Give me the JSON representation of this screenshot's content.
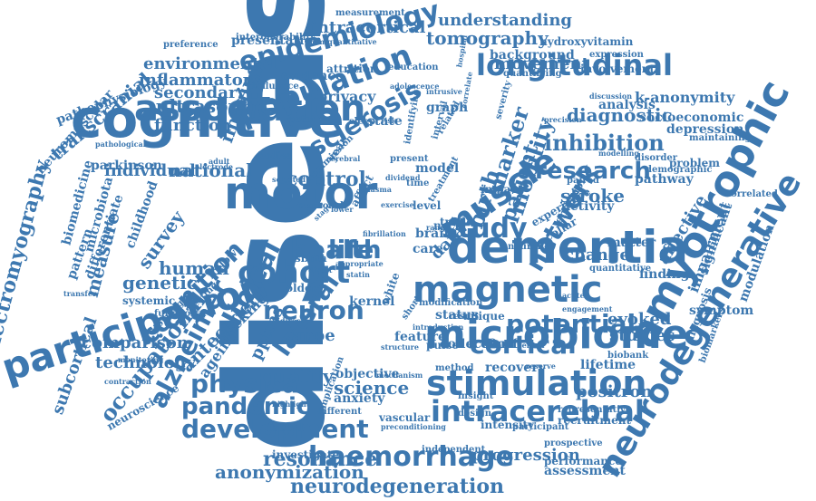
{
  "palette": {
    "word": "#3d78b0",
    "background": "#ffffff"
  },
  "words": [
    "disease",
    "cognitive",
    "dementia",
    "association",
    "motor",
    "participation",
    "microbiome",
    "amyotrophic",
    "neurodegenerative",
    "stimulation",
    "magnetic",
    "muscle",
    "study",
    "cohort",
    "population",
    "epidemiology",
    "longitudinal",
    "intracerebral",
    "haemorrhage",
    "neurodegeneration",
    "development",
    "pandemic",
    "physical",
    "cognition",
    "alzheimer",
    "clinical",
    "health",
    "life",
    "neuron",
    "potential",
    "cortical",
    "electromyography",
    "occupational",
    "network",
    "research",
    "inhibition",
    "sclerosis",
    "imaging",
    "ultrasound",
    "function",
    "transcranial",
    "resonance",
    "anonymization",
    "science",
    "quality",
    "lateral",
    "apoe",
    "control",
    "individual",
    "national",
    "environmental",
    "inflammatory",
    "secondary",
    "tomography",
    "understanding",
    "intracortical",
    "presentation",
    "hydroxyvitamin",
    "background",
    "movement",
    "involvement",
    "diagnostic",
    "socioeconomic",
    "k-anonymity",
    "analysis",
    "depression",
    "mobility",
    "patient",
    "marker",
    "birth",
    "stroke",
    "pathway",
    "problem",
    "affective",
    "significant",
    "impairment",
    "modulation",
    "diagnosis",
    "biomarkers",
    "symptom",
    "finding",
    "matter",
    "change",
    "evoked",
    "studies",
    "lifetime",
    "positron",
    "recruitment",
    "representative",
    "assessment",
    "performance",
    "progression",
    "independent",
    "vascular",
    "intensity",
    "participant",
    "prospective",
    "parkinson",
    "pathophysiology",
    "neuromuscular",
    "biomedicine",
    "microbiota",
    "measure",
    "genetic",
    "survey",
    "human",
    "comparison",
    "technology",
    "subcortical",
    "systemic",
    "neuroscience",
    "tracking",
    "antecedent",
    "pptms",
    "ageing",
    "objective",
    "anxiety",
    "feature",
    "pulse",
    "status",
    "result",
    "unique",
    "recovery",
    "method",
    "insight",
    "design",
    "collection",
    "c9orf",
    "older",
    "kernel",
    "sbma",
    "level",
    "brain",
    "care",
    "data",
    "neck",
    "trial",
    "impact",
    "model",
    "state",
    "graph",
    "evidence",
    "privacy",
    "attrition",
    "influence",
    "education",
    "expression",
    "quantifying",
    "experience",
    "collar",
    "emission",
    "activity",
    "paired",
    "correlated",
    "demographic",
    "disorder",
    "pattern",
    "differentiate",
    "childhood",
    "follow",
    "transfer",
    "commission",
    "modification",
    "white",
    "short",
    "affect",
    "year",
    "time",
    "sleep",
    "bodies",
    "present",
    "factor",
    "interval",
    "related",
    "severity",
    "preference",
    "interoperability",
    "measurement",
    "semiquantitative",
    "pathological",
    "monitoring",
    "contraction",
    "maintaining",
    "quantitative",
    "biobank",
    "engagement",
    "different",
    "faecal",
    "investigate",
    "preconditioning",
    "implication",
    "functional",
    "topology",
    "approach",
    "adult",
    "cerebral",
    "neurone",
    "testing",
    "mechanism",
    "highlight",
    "introduction",
    "person",
    "structure",
    "reserve",
    "dividend",
    "acute",
    "range",
    "treatment",
    "risk",
    "adolescence",
    "intrusive",
    "hospital",
    "identifying",
    "correlate",
    "precision",
    "discussion",
    "modelling",
    "electrode",
    "appropriate",
    "selected",
    "indirect",
    "direct",
    "statin",
    "stage",
    "fibrillation",
    "exercise",
    "lower",
    "plasma",
    "motion"
  ]
}
